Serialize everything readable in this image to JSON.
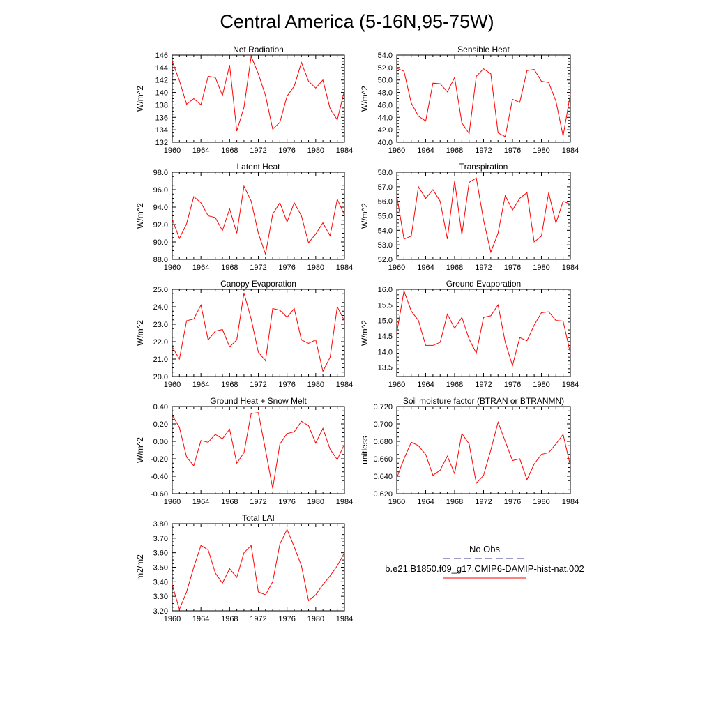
{
  "title": "Central America (5-16N,95-75W)",
  "legend": {
    "obs_label": "No Obs",
    "obs_color": "#3b3b8f",
    "model_label": "b.e21.B1850.f09_g17.CMIP6-DAMIP-hist-nat.002",
    "model_color": "#ff0000"
  },
  "chart_data": [
    {
      "type": "line",
      "title": "Net Radiation",
      "ylabel": "W/m^2",
      "xlim": [
        1960,
        1984
      ],
      "ylim": [
        132,
        146
      ],
      "xticks": [
        "1960",
        "1964",
        "1968",
        "1972",
        "1976",
        "1980",
        "1984"
      ],
      "yticks": [
        "132",
        "134",
        "136",
        "138",
        "140",
        "142",
        "144",
        "146"
      ],
      "x": [
        1960,
        1961,
        1962,
        1963,
        1964,
        1965,
        1966,
        1967,
        1968,
        1969,
        1970,
        1971,
        1972,
        1973,
        1974,
        1975,
        1976,
        1977,
        1978,
        1979,
        1980,
        1981,
        1982,
        1983,
        1984
      ],
      "series": [
        {
          "values": [
            145.0,
            141.9,
            138.1,
            139.0,
            138.0,
            142.6,
            142.4,
            139.5,
            144.4,
            133.8,
            137.6,
            145.8,
            143.0,
            139.5,
            134.1,
            135.2,
            139.4,
            141.0,
            144.8,
            141.8,
            140.7,
            142.0,
            137.4,
            135.6,
            140.3
          ]
        }
      ]
    },
    {
      "type": "line",
      "title": "Sensible Heat",
      "ylabel": "W/m^2",
      "xlim": [
        1960,
        1984
      ],
      "ylim": [
        40,
        54
      ],
      "xticks": [
        "1960",
        "1964",
        "1968",
        "1972",
        "1976",
        "1980",
        "1984"
      ],
      "yticks": [
        "40.0",
        "42.0",
        "44.0",
        "46.0",
        "48.0",
        "50.0",
        "52.0",
        "54.0"
      ],
      "x": [
        1960,
        1961,
        1962,
        1963,
        1964,
        1965,
        1966,
        1967,
        1968,
        1969,
        1970,
        1971,
        1972,
        1973,
        1974,
        1975,
        1976,
        1977,
        1978,
        1979,
        1980,
        1981,
        1982,
        1983,
        1984
      ],
      "series": [
        {
          "values": [
            51.9,
            51.4,
            46.3,
            44.2,
            43.4,
            49.5,
            49.4,
            48.1,
            50.4,
            43.1,
            41.4,
            50.6,
            51.8,
            51.0,
            41.5,
            40.9,
            46.9,
            46.4,
            51.5,
            51.7,
            49.8,
            49.6,
            46.6,
            41.0,
            47.7
          ]
        }
      ]
    },
    {
      "type": "line",
      "title": "Latent Heat",
      "ylabel": "W/m^2",
      "xlim": [
        1960,
        1984
      ],
      "ylim": [
        88,
        98
      ],
      "xticks": [
        "1960",
        "1964",
        "1968",
        "1972",
        "1976",
        "1980",
        "1984"
      ],
      "yticks": [
        "88.0",
        "90.0",
        "92.0",
        "94.0",
        "96.0",
        "98.0"
      ],
      "x": [
        1960,
        1961,
        1962,
        1963,
        1964,
        1965,
        1966,
        1967,
        1968,
        1969,
        1970,
        1971,
        1972,
        1973,
        1974,
        1975,
        1976,
        1977,
        1978,
        1979,
        1980,
        1981,
        1982,
        1983,
        1984
      ],
      "series": [
        {
          "values": [
            92.6,
            90.4,
            92.1,
            95.2,
            94.5,
            93.0,
            92.8,
            91.3,
            93.8,
            91.0,
            96.4,
            94.7,
            91.0,
            88.6,
            93.2,
            94.5,
            92.3,
            94.5,
            93.0,
            89.9,
            90.9,
            92.2,
            90.7,
            94.9,
            93.1
          ]
        }
      ]
    },
    {
      "type": "line",
      "title": "Transpiration",
      "ylabel": "W/m^2",
      "xlim": [
        1960,
        1984
      ],
      "ylim": [
        52,
        58
      ],
      "xticks": [
        "1960",
        "1964",
        "1968",
        "1972",
        "1976",
        "1980",
        "1984"
      ],
      "yticks": [
        "52.0",
        "53.0",
        "54.0",
        "55.0",
        "56.0",
        "57.0",
        "58.0"
      ],
      "x": [
        1960,
        1961,
        1962,
        1963,
        1964,
        1965,
        1966,
        1967,
        1968,
        1969,
        1970,
        1971,
        1972,
        1973,
        1974,
        1975,
        1976,
        1977,
        1978,
        1979,
        1980,
        1981,
        1982,
        1983,
        1984
      ],
      "series": [
        {
          "values": [
            56.4,
            53.4,
            53.6,
            57.0,
            56.2,
            56.8,
            56.0,
            53.4,
            57.4,
            53.7,
            57.3,
            57.6,
            54.7,
            52.5,
            53.8,
            56.4,
            55.4,
            56.2,
            56.6,
            53.2,
            53.6,
            56.6,
            54.5,
            56.0,
            55.8
          ]
        }
      ]
    },
    {
      "type": "line",
      "title": "Canopy Evaporation",
      "ylabel": "W/m^2",
      "xlim": [
        1960,
        1984
      ],
      "ylim": [
        20,
        25
      ],
      "xticks": [
        "1960",
        "1964",
        "1968",
        "1972",
        "1976",
        "1980",
        "1984"
      ],
      "yticks": [
        "20.0",
        "21.0",
        "22.0",
        "23.0",
        "24.0",
        "25.0"
      ],
      "x": [
        1960,
        1961,
        1962,
        1963,
        1964,
        1965,
        1966,
        1967,
        1968,
        1969,
        1970,
        1971,
        1972,
        1973,
        1974,
        1975,
        1976,
        1977,
        1978,
        1979,
        1980,
        1981,
        1982,
        1983,
        1984
      ],
      "series": [
        {
          "values": [
            21.7,
            21.0,
            23.2,
            23.3,
            24.1,
            22.1,
            22.6,
            22.7,
            21.7,
            22.1,
            24.8,
            23.3,
            21.4,
            20.9,
            23.9,
            23.8,
            23.4,
            23.9,
            22.1,
            21.9,
            22.1,
            20.3,
            21.1,
            24.0,
            23.2
          ]
        }
      ]
    },
    {
      "type": "line",
      "title": "Ground Evaporation",
      "ylabel": "W/m^2",
      "xlim": [
        1960,
        1984
      ],
      "ylim": [
        13.2,
        16
      ],
      "xticks": [
        "1960",
        "1964",
        "1968",
        "1972",
        "1976",
        "1980",
        "1984"
      ],
      "yticks": [
        "13.5",
        "14.0",
        "14.5",
        "15.0",
        "15.5",
        "16.0"
      ],
      "x": [
        1960,
        1961,
        1962,
        1963,
        1964,
        1965,
        1966,
        1967,
        1968,
        1969,
        1970,
        1971,
        1972,
        1973,
        1974,
        1975,
        1976,
        1977,
        1978,
        1979,
        1980,
        1981,
        1982,
        1983,
        1984
      ],
      "series": [
        {
          "values": [
            14.6,
            15.95,
            15.3,
            15.0,
            14.2,
            14.2,
            14.3,
            15.2,
            14.75,
            15.1,
            14.4,
            13.95,
            15.1,
            15.15,
            15.5,
            14.3,
            13.55,
            14.45,
            14.35,
            14.85,
            15.25,
            15.28,
            15.0,
            14.98,
            13.95
          ]
        }
      ]
    },
    {
      "type": "line",
      "title": "Ground Heat + Snow Melt",
      "ylabel": "W/m^2",
      "xlim": [
        1960,
        1984
      ],
      "ylim": [
        -0.6,
        0.4
      ],
      "xticks": [
        "1960",
        "1964",
        "1968",
        "1972",
        "1976",
        "1980",
        "1984"
      ],
      "yticks": [
        "-0.60",
        "-0.40",
        "-0.20",
        "0.00",
        "0.20",
        "0.40"
      ],
      "x": [
        1960,
        1961,
        1962,
        1963,
        1964,
        1965,
        1966,
        1967,
        1968,
        1969,
        1970,
        1971,
        1972,
        1973,
        1974,
        1975,
        1976,
        1977,
        1978,
        1979,
        1980,
        1981,
        1982,
        1983,
        1984
      ],
      "series": [
        {
          "values": [
            0.3,
            0.16,
            -0.18,
            -0.28,
            0.01,
            -0.01,
            0.08,
            0.03,
            0.14,
            -0.25,
            -0.13,
            0.32,
            0.33,
            -0.1,
            -0.54,
            -0.03,
            0.09,
            0.11,
            0.23,
            0.18,
            -0.02,
            0.15,
            -0.09,
            -0.21,
            -0.03
          ]
        }
      ]
    },
    {
      "type": "line",
      "title": "Soil moisture factor (BTRAN or BTRANMN)",
      "ylabel": "unitless",
      "xlim": [
        1960,
        1984
      ],
      "ylim": [
        0.62,
        0.72
      ],
      "xticks": [
        "1960",
        "1964",
        "1968",
        "1972",
        "1976",
        "1980",
        "1984"
      ],
      "yticks": [
        "0.620",
        "0.640",
        "0.660",
        "0.680",
        "0.700",
        "0.720"
      ],
      "x": [
        1960,
        1961,
        1962,
        1963,
        1964,
        1965,
        1966,
        1967,
        1968,
        1969,
        1970,
        1971,
        1972,
        1973,
        1974,
        1975,
        1976,
        1977,
        1978,
        1979,
        1980,
        1981,
        1982,
        1983,
        1984
      ],
      "series": [
        {
          "values": [
            0.638,
            0.66,
            0.679,
            0.675,
            0.665,
            0.641,
            0.647,
            0.663,
            0.643,
            0.689,
            0.677,
            0.632,
            0.641,
            0.67,
            0.702,
            0.68,
            0.658,
            0.66,
            0.636,
            0.654,
            0.665,
            0.667,
            0.677,
            0.688,
            0.652
          ]
        }
      ]
    },
    {
      "type": "line",
      "title": "Total LAI",
      "ylabel": "m2/m2",
      "xlim": [
        1960,
        1984
      ],
      "ylim": [
        3.2,
        3.8
      ],
      "xticks": [
        "1960",
        "1964",
        "1968",
        "1972",
        "1976",
        "1980",
        "1984"
      ],
      "yticks": [
        "3.20",
        "3.30",
        "3.40",
        "3.50",
        "3.60",
        "3.70",
        "3.80"
      ],
      "x": [
        1960,
        1961,
        1962,
        1963,
        1964,
        1965,
        1966,
        1967,
        1968,
        1969,
        1970,
        1971,
        1972,
        1973,
        1974,
        1975,
        1976,
        1977,
        1978,
        1979,
        1980,
        1981,
        1982,
        1983,
        1984
      ],
      "series": [
        {
          "values": [
            3.38,
            3.21,
            3.33,
            3.5,
            3.65,
            3.62,
            3.46,
            3.39,
            3.49,
            3.43,
            3.6,
            3.65,
            3.33,
            3.31,
            3.4,
            3.66,
            3.76,
            3.64,
            3.51,
            3.27,
            3.31,
            3.38,
            3.44,
            3.51,
            3.6
          ]
        }
      ]
    }
  ]
}
